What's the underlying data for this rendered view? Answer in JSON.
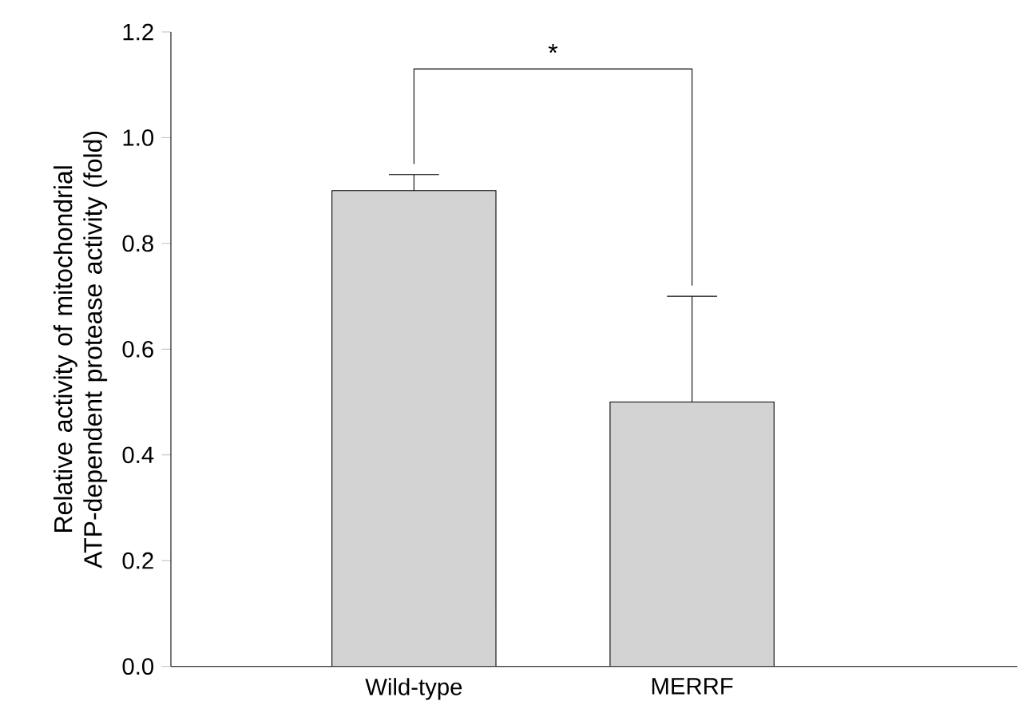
{
  "chart_data": {
    "type": "bar",
    "categories": [
      "Wild-type",
      "MERRF"
    ],
    "values": [
      0.9,
      0.5
    ],
    "color": "#d3d3d3",
    "errors": [
      [
        0.9,
        0.93
      ],
      [
        0.5,
        0.7
      ]
    ],
    "ylabel": "Relative activity of mitochondrial ATP-dependent protease activity (fold)",
    "ylim": [
      0,
      1.2
    ],
    "yticks": [
      {
        "value": 0,
        "label": "0.0"
      },
      {
        "value": 0.2,
        "label": "0.2"
      },
      {
        "value": 0.4,
        "label": "0.4"
      },
      {
        "value": 0.6,
        "label": "0.6"
      },
      {
        "value": 0.8,
        "label": "0.8"
      },
      {
        "value": 1.0,
        "label": "1.0"
      },
      {
        "value": 1.2,
        "label": "1.2"
      }
    ],
    "annotations": [
      "*"
    ]
  }
}
